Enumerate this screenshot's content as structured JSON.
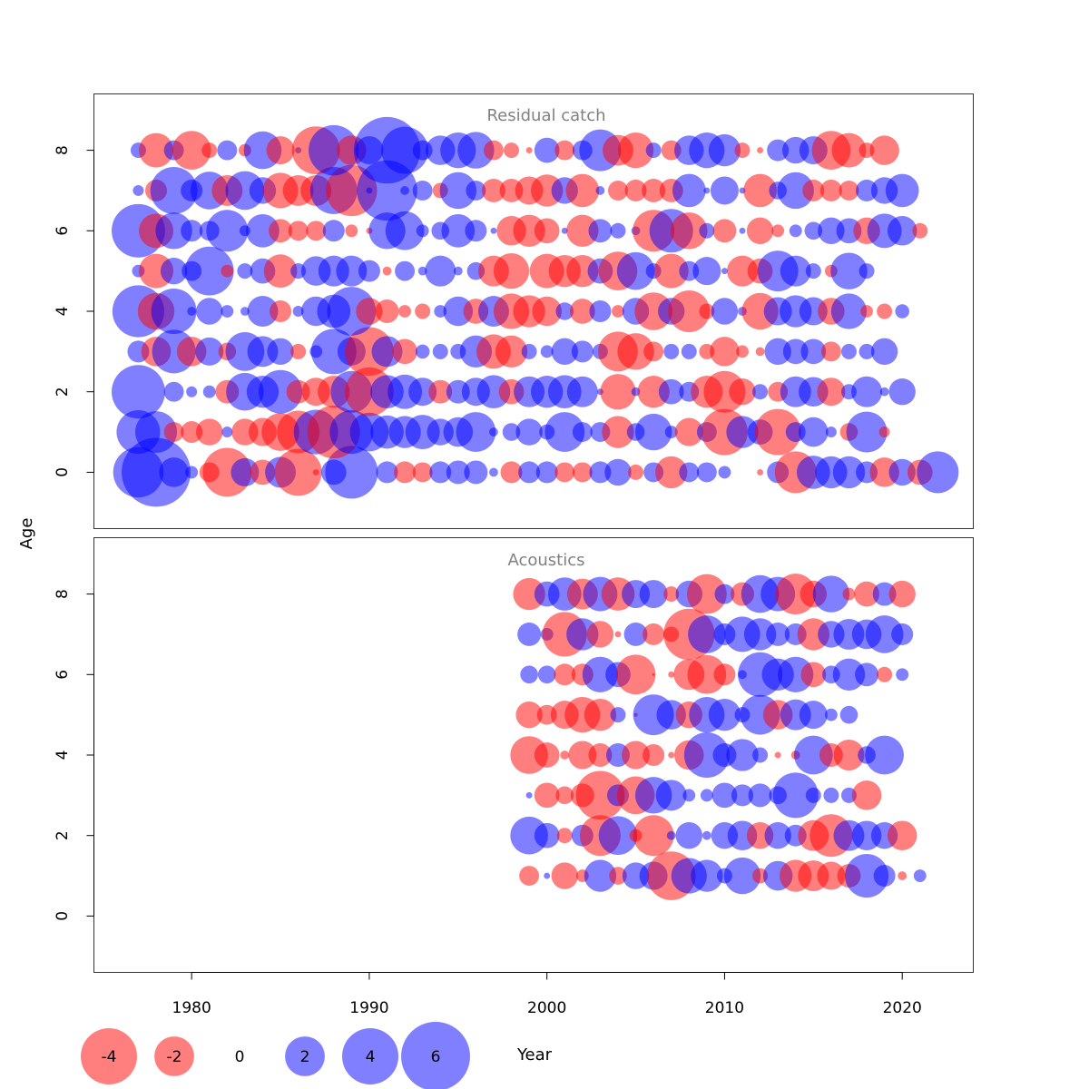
{
  "chart_data": {
    "type": "scatter",
    "subtype": "bubble",
    "xlabel": "Year",
    "ylabel": "Age",
    "xlim": [
      1974.5,
      2024
    ],
    "ylim": [
      -1.4,
      9.4
    ],
    "x_ticks": [
      1980,
      1990,
      2000,
      2010,
      2020
    ],
    "y_ticks": [
      0,
      2,
      4,
      6,
      8
    ],
    "colors": {
      "negative": "#ff0000",
      "positive": "#0000ff",
      "opacity": 0.5
    },
    "size_note": "bubble radius proportional to sqrt(|residual|)",
    "panels": [
      {
        "title": "Residual catch",
        "years_start": 1977,
        "ages": [
          0,
          1,
          2,
          3,
          4,
          5,
          6,
          7,
          8
        ],
        "residuals_by_age": {
          "0": [
            3.2,
            6.0,
            1.1,
            0.2,
            -0.5,
            -3.0,
            1.0,
            -0.8,
            1.2,
            -2.8,
            -0.05,
            0.8,
            3.5,
            0,
            0.6,
            -0.6,
            -0.5,
            0.6,
            0.7,
            0.7,
            0.1,
            -0.6,
            0.6,
            0.6,
            -0.5,
            -0.5,
            0.6,
            0.9,
            -0.3,
            0.5,
            -1.3,
            0.5,
            0.5,
            0.2,
            0,
            -0.05,
            0.6,
            -2.2,
            1.4,
            1.3,
            1.3,
            0.6,
            -1.1,
            0.9,
            -0.8,
            2.2
          ],
          "1": [
            2.4,
            2.2,
            -0.5,
            -0.6,
            -0.9,
            0.15,
            -0.9,
            -1.0,
            -1.8,
            -2.3,
            2.5,
            -3.5,
            2.4,
            1.9,
            1.4,
            1.3,
            1.5,
            0.9,
            1.1,
            2.0,
            0.1,
            0.4,
            0.9,
            0.3,
            2.0,
            0.5,
            0.5,
            -1.3,
            0.4,
            1.7,
            0.2,
            -1.0,
            0.5,
            -2.7,
            1.3,
            0.8,
            -2.7,
            0.5,
            1.1,
            0.15,
            -0.4,
            2.1,
            -0.15
          ],
          "2": [
            3.6,
            0,
            0.5,
            0.15,
            0.2,
            -0.7,
            1.8,
            1.3,
            2.4,
            -0.7,
            -1.0,
            -1.3,
            2.2,
            -3.0,
            1.4,
            1.5,
            1.0,
            -0.7,
            0.7,
            1.0,
            1.4,
            -0.8,
            1.2,
            1.3,
            1.4,
            1.2,
            0.05,
            -1.6,
            0.1,
            -1.3,
            0.8,
            0.5,
            -1.3,
            -2.2,
            -0.9,
            0.3,
            -0.5,
            1.2,
            1.1,
            -1.0,
            0.3,
            1.2,
            0.1,
            0.9
          ],
          "3": [
            0.6,
            -1.1,
            2.4,
            -1.1,
            1.0,
            -0.4,
            1.9,
            1.2,
            0.9,
            -0.3,
            0.2,
            2.6,
            1.0,
            -3.0,
            1.2,
            -0.8,
            0.25,
            0.3,
            0.3,
            1.3,
            -1.5,
            -1.3,
            0.3,
            0.2,
            0.9,
            0.6,
            0.3,
            -2.0,
            -1.7,
            -0.5,
            0.3,
            0.3,
            -0.3,
            -1.1,
            -0.2,
            -0.1,
            0.9,
            0.8,
            0.8,
            -0.5,
            0.3,
            0.3,
            0.9
          ],
          "4": [
            3.4,
            -1.7,
            2.6,
            0.1,
            0.9,
            0.2,
            0.1,
            1.2,
            -0.6,
            0.15,
            1.1,
            1.4,
            3.0,
            -0.9,
            -0.7,
            -0.2,
            -0.3,
            0.2,
            1.1,
            -0.8,
            1.2,
            -1.6,
            -1.3,
            -1.1,
            0.4,
            -0.8,
            0.6,
            -0.2,
            0.9,
            -1.8,
            0.9,
            -2.2,
            -0.3,
            0.9,
            0.1,
            -1.7,
            1.0,
            1.3,
            1.0,
            -0.9,
            1.6,
            -0.2,
            -0.3,
            0.25
          ],
          "5": [
            0.2,
            -1.5,
            0.9,
            0.5,
            3.0,
            -0.2,
            0.3,
            0.8,
            -1.4,
            0.3,
            1.1,
            1.2,
            1.2,
            0.6,
            -0.1,
            0.5,
            0.1,
            1.2,
            0.1,
            0.4,
            -1.2,
            -1.6,
            0,
            -1.5,
            -1.3,
            -1.3,
            0.8,
            -1.9,
            1.8,
            0.3,
            -1.5,
            0.5,
            1.0,
            0.05,
            -1.2,
            -0.8,
            2.1,
            1.2,
            0.3,
            -0.2,
            1.7,
            0.3
          ],
          "6": [
            3.6,
            -1.5,
            1.7,
            0.6,
            0.5,
            2.2,
            0.15,
            1.4,
            -0.7,
            -0.5,
            -0.5,
            0.6,
            -0.2,
            -0.05,
            1.7,
            1.9,
            0.2,
            0.4,
            1.4,
            0.6,
            0.05,
            -1.1,
            -1.3,
            -0.8,
            0.05,
            -1.3,
            0.7,
            0.3,
            0.1,
            -2.2,
            2.4,
            -1.7,
            0.3,
            -0.7,
            0.05,
            -0.9,
            -0.2,
            0.2,
            0.4,
            0.9,
            0.8,
            -0.9,
            1.5,
            1.1,
            -0.3
          ],
          "7": [
            0.15,
            -0.6,
            2.8,
            0.6,
            1.8,
            -1.2,
            1.9,
            0.9,
            -1.6,
            -1.2,
            -1.2,
            2.8,
            -3.3,
            0.05,
            4.6,
            0.1,
            0.5,
            -0.3,
            1.7,
            0.5,
            -0.7,
            -0.7,
            -1.0,
            -1.3,
            0.9,
            -1.4,
            0.1,
            -0.5,
            -0.6,
            -0.7,
            -0.7,
            1.4,
            0.05,
            1.0,
            0.05,
            -1.4,
            0.4,
            1.7,
            -0.6,
            -0.6,
            -0.5,
            0.6,
            0.9,
            1.4
          ],
          "8": [
            0.3,
            -1.5,
            0.5,
            -1.9,
            -0.3,
            0.5,
            -0.2,
            1.8,
            -1.0,
            0.05,
            -2.9,
            3.2,
            -1.1,
            1.0,
            5.6,
            2.8,
            0.5,
            1.1,
            1.6,
            1.7,
            -0.5,
            -0.3,
            -0.05,
            0.8,
            -0.5,
            0.5,
            2.2,
            -1.2,
            -1.6,
            0.3,
            -0.5,
            1.1,
            1.6,
            1.3,
            -0.3,
            -0.05,
            0.6,
            0.9,
            1.0,
            -1.9,
            -1.5,
            -0.3,
            -1.1
          ],
          "note": "values in residual units; years run consecutively from years_start"
        }
      },
      {
        "title": "Acoustics",
        "years_start": 1999,
        "ages": [
          1,
          2,
          3,
          4,
          5,
          6,
          7,
          8
        ],
        "residuals_by_age": {
          "1": [
            -0.5,
            0.05,
            -0.9,
            -0.2,
            1.3,
            -0.4,
            0.9,
            1.0,
            -3.0,
            1.6,
            1.3,
            0.3,
            1.7,
            -0.3,
            1.1,
            -1.3,
            -1.2,
            -1.0,
            -0.7,
            2.4,
            0.6,
            -0.1,
            0.2
          ],
          "2": [
            1.8,
            0.8,
            -0.3,
            0.6,
            -2.1,
            1.9,
            -0.2,
            -2.1,
            0.1,
            0.9,
            0.1,
            0.9,
            1.1,
            -0.9,
            0.9,
            0.6,
            -1.2,
            -2.3,
            1.2,
            1.1,
            0.9,
            -1.1
          ],
          "3": [
            0.05,
            -0.8,
            -0.4,
            -0.7,
            -3.0,
            0.6,
            -1.8,
            1.7,
            1.2,
            0.2,
            0.2,
            0.8,
            0.6,
            0.7,
            0.4,
            2.6,
            0.3,
            0.3,
            0.3,
            -1.1
          ],
          "4": [
            -1.8,
            -0.8,
            -0.1,
            -1.0,
            -0.7,
            0.7,
            -1.0,
            -0.6,
            -0.05,
            -1.1,
            2.6,
            0.7,
            1.3,
            0.3,
            -0.05,
            -0.1,
            1.9,
            -0.7,
            -1.2,
            0.4,
            1.9
          ],
          "5": [
            -0.9,
            -0.5,
            -1.0,
            -1.6,
            -1.3,
            0.3,
            -0.02,
            2.1,
            1.1,
            -0.9,
            1.6,
            1.3,
            0.3,
            2.0,
            -1.1,
            1.2,
            1.0,
            0.2,
            0.4
          ],
          "6": [
            0.4,
            0.4,
            -0.6,
            -0.6,
            1.6,
            0.8,
            -2.0,
            -0.01,
            -0.05,
            -1.2,
            -1.9,
            -0.6,
            0.1,
            2.5,
            1.3,
            1.6,
            -0.8,
            0.4,
            1.3,
            0.7,
            -0.3,
            0.2
          ],
          "7": [
            0.7,
            0.2,
            -2.5,
            1.3,
            -0.9,
            -0.05,
            0.7,
            -0.6,
            -0.3,
            -3.3,
            1.8,
            0.6,
            1.6,
            1.3,
            0.7,
            0.6,
            -1.3,
            0.9,
            1.2,
            1.1,
            1.8,
            0.6
          ],
          "8": [
            -1.3,
            0.8,
            1.4,
            -1.2,
            1.5,
            -1.4,
            1.0,
            1.0,
            -0.3,
            0.9,
            -2.0,
            0.5,
            -0.7,
            1.8,
            1.5,
            -2.1,
            -0.9,
            1.7,
            -0.2,
            -0.8,
            0.7,
            -0.9
          ],
          "note": "values in residual units; years run consecutively from years_start"
        }
      }
    ],
    "legend": {
      "placement": "bottom",
      "values": [
        -4,
        -2,
        0,
        2,
        4,
        6
      ]
    }
  }
}
